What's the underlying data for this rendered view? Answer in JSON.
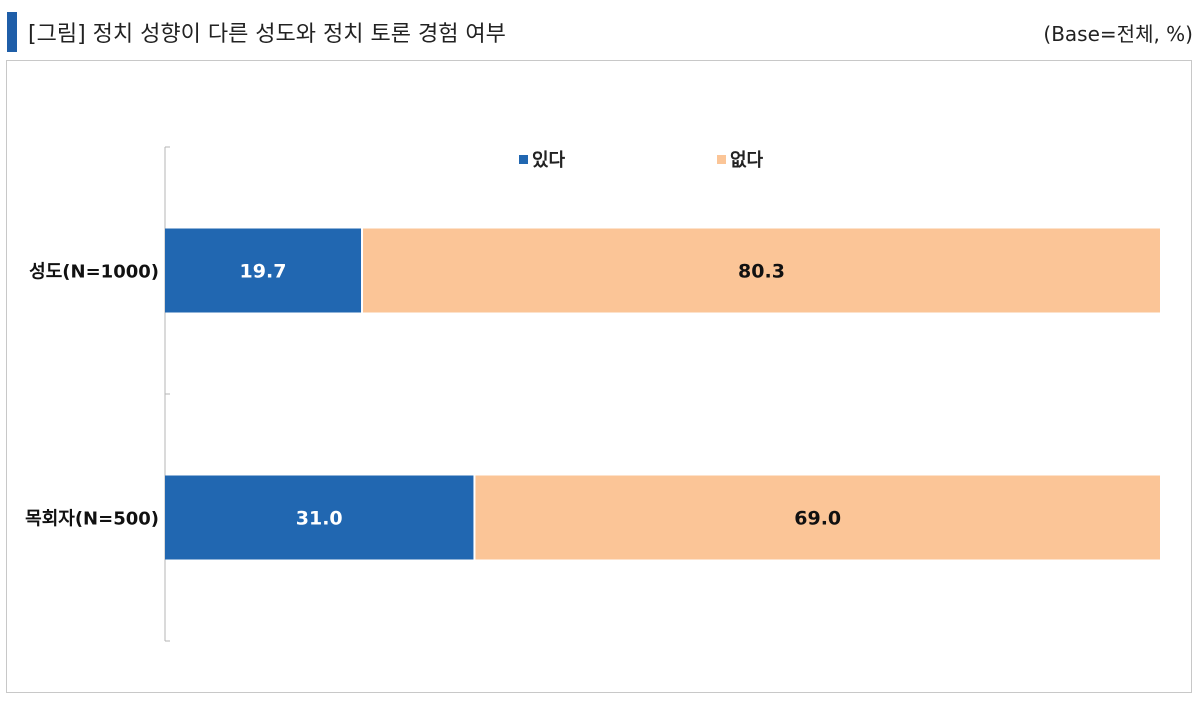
{
  "header": {
    "title": "[그림] 정치 성향이 다른 성도와 정치 토론 경험 여부",
    "base_note": "(Base=전체, %)",
    "accent_color": "#1f5ea8"
  },
  "chart_data": {
    "type": "bar",
    "orientation": "horizontal",
    "stacked": true,
    "title": "",
    "categories": [
      "성도(N=1000)",
      "목회자(N=500)"
    ],
    "series": [
      {
        "name": "있다",
        "color": "#2167b1",
        "label_color": "#ffffff",
        "values": [
          19.7,
          31.0
        ]
      },
      {
        "name": "없다",
        "color": "#fbc597",
        "label_color": "#111111",
        "values": [
          80.3,
          69.0
        ]
      }
    ],
    "data_labels": [
      [
        "19.7",
        "31.0"
      ],
      [
        "80.3",
        "69.0"
      ]
    ],
    "xlim": [
      0,
      100
    ],
    "grid": false,
    "legend_position": "top"
  }
}
